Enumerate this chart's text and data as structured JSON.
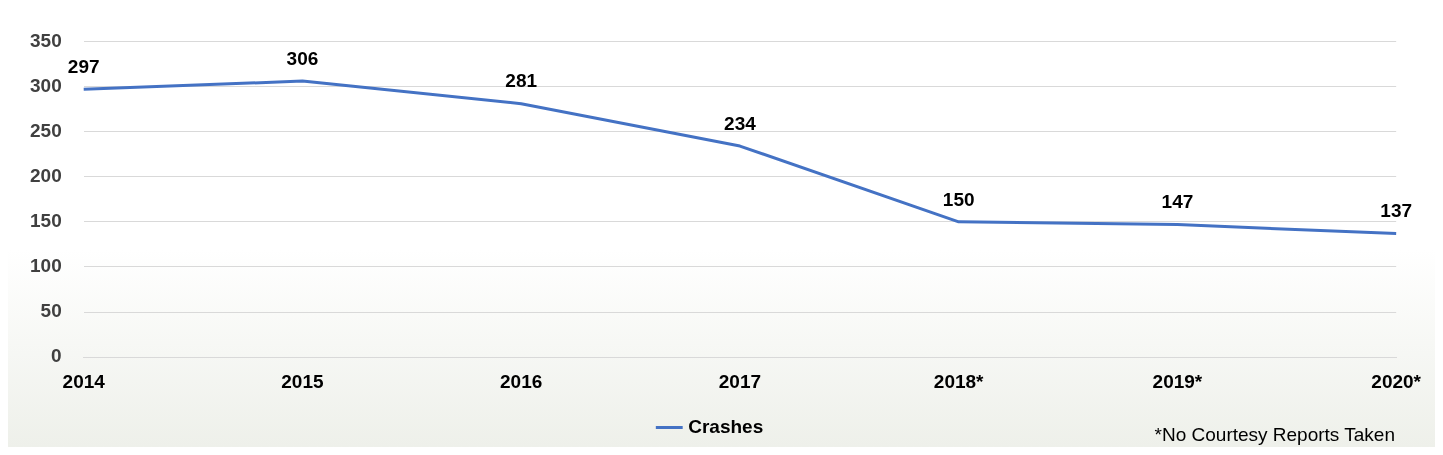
{
  "chart_data": {
    "type": "line",
    "categories": [
      "2014",
      "2015",
      "2016",
      "2017",
      "2018*",
      "2019*",
      "2020*"
    ],
    "series": [
      {
        "name": "Crashes",
        "color": "#4472c4",
        "values": [
          297,
          306,
          281,
          234,
          150,
          147,
          137
        ]
      }
    ],
    "ylim": [
      0,
      350
    ],
    "yticks": [
      0,
      50,
      100,
      150,
      200,
      250,
      300,
      350
    ],
    "grid": "y",
    "legend": "bottom",
    "marker": "none",
    "line_style": "solid",
    "data_labels": true,
    "annotations": [
      "*No Courtesy Reports Taken"
    ]
  }
}
